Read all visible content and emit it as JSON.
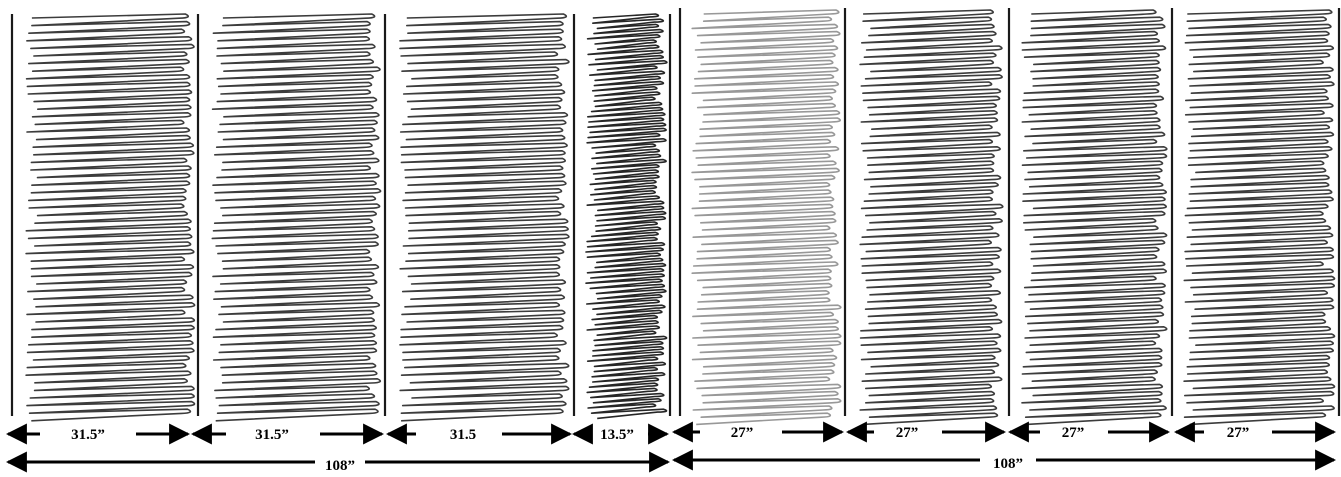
{
  "figure": {
    "row1_labels": [
      "31.5”",
      "31.5”",
      "31.5",
      "13.5”",
      "27”",
      "27”",
      "27”",
      "27”"
    ],
    "row2_labels": [
      "108”",
      "108”"
    ],
    "stroke_color": "#1a1a1a",
    "panel_count": 8
  }
}
